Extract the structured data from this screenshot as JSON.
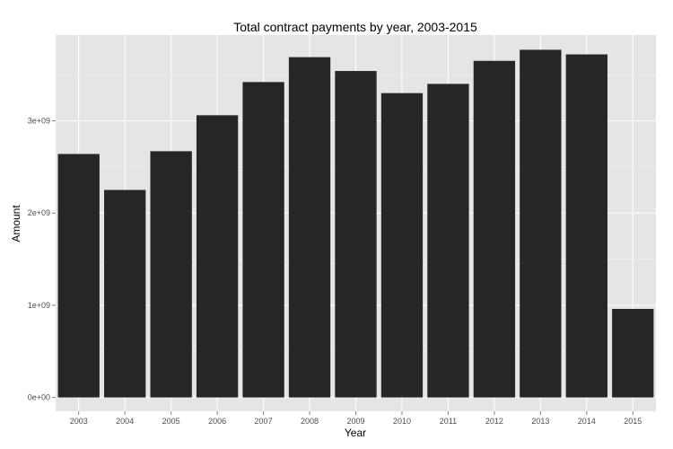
{
  "chart_data": {
    "type": "bar",
    "title": "Total contract payments by year, 2003-2015",
    "xlabel": "Year",
    "ylabel": "Amount",
    "categories": [
      "2003",
      "2004",
      "2005",
      "2006",
      "2007",
      "2008",
      "2009",
      "2010",
      "2011",
      "2012",
      "2013",
      "2014",
      "2015"
    ],
    "values": [
      2640000000,
      2250000000,
      2670000000,
      3060000000,
      3420000000,
      3690000000,
      3540000000,
      3300000000,
      3400000000,
      3650000000,
      3770000000,
      3720000000,
      960000000
    ],
    "ylim": [
      -150000000,
      3930000000
    ],
    "y_ticks": [
      0,
      1000000000,
      2000000000,
      3000000000
    ],
    "y_tick_labels": [
      "0e+00",
      "1e+09",
      "2e+09",
      "3e+09"
    ],
    "grid": true,
    "legend": "none",
    "colors": {
      "bar": "#262626",
      "panel": "#e5e5e5",
      "grid": "#ffffff"
    }
  }
}
